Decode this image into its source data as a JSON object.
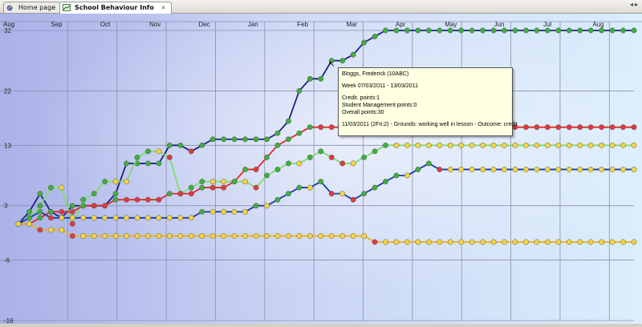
{
  "tabs": [
    {
      "label": "Home page",
      "icon": "home-icon",
      "active": false
    },
    {
      "label": "School Behaviour Info",
      "icon": "chart-icon",
      "active": true
    }
  ],
  "colors": {
    "navy": "#1a237e",
    "green": "#7fdc6e",
    "red": "#dd2a2a",
    "yellow": "#f2b01e",
    "blue": "#1a3aa8",
    "marker_green": "#3fae3f",
    "marker_yellow": "#f4d440",
    "marker_red": "#dd3b3b",
    "tooltip_bg": "#ffffe1"
  },
  "tooltip": {
    "name": "Bloggs, Frederick (10ABC)",
    "week": "Week 07/03/2011 - 13/03/2011",
    "credit": "Credit. points:1",
    "student_mgmt": "Student Management points:0",
    "overall": "Overall points:30",
    "detail": "11/03/2011 (2Fri:2) - Grounds: working well in lesson - Outcome: credit"
  },
  "chart_data": {
    "type": "line",
    "x_tick_labels": [
      "Aug",
      "Sep",
      "Oct",
      "Nov",
      "Dec",
      "Jan",
      "Feb",
      "Mar",
      "Apr",
      "May",
      "Jun",
      "Jul",
      "Aug"
    ],
    "y_tick_labels": [
      "32",
      "22",
      "13",
      "3",
      "-6",
      "-16"
    ],
    "ylim": [
      -16,
      32
    ],
    "grid": true,
    "series": [
      {
        "color_key": "navy",
        "marker_key": "marker_green",
        "values": [
          0,
          2,
          5,
          2,
          1,
          3,
          3,
          3,
          3,
          5,
          10,
          10,
          10,
          10,
          13,
          13,
          12,
          13,
          14,
          14,
          14,
          14,
          14,
          14,
          15,
          17,
          22,
          24,
          24,
          27,
          27,
          28,
          30,
          31,
          32,
          32,
          32,
          32,
          32,
          32,
          32,
          32,
          32,
          32,
          32,
          32,
          32,
          32,
          32,
          32,
          32,
          32,
          32,
          32,
          32,
          32,
          32,
          32
        ]
      },
      {
        "color_key": "green",
        "marker_key": "marker_yellow",
        "values": [
          0,
          1,
          3,
          6,
          6,
          0,
          4,
          5,
          7,
          7,
          7,
          11,
          12,
          12,
          11,
          5,
          6,
          7,
          7,
          7,
          7,
          7,
          6,
          8,
          9,
          10,
          10,
          11,
          12,
          11,
          10,
          10,
          11,
          12,
          13,
          13,
          13,
          13,
          13,
          13,
          13,
          13,
          13,
          13,
          13,
          13,
          13,
          13,
          13,
          13,
          13,
          13,
          13,
          13,
          13,
          13,
          13,
          13
        ]
      },
      {
        "color_key": "red",
        "marker_key": "marker_red",
        "values": [
          0,
          0,
          1,
          2,
          2,
          2,
          3,
          3,
          3,
          4,
          4,
          4,
          4,
          4,
          5,
          5,
          5,
          6,
          6,
          6,
          7,
          9,
          9,
          11,
          13,
          14,
          15,
          16,
          16,
          16,
          16,
          16,
          16,
          16,
          16,
          16,
          16,
          16,
          16,
          16,
          16,
          16,
          16,
          16,
          16,
          16,
          16,
          16,
          16,
          16,
          16,
          16,
          16,
          16,
          16,
          16,
          16,
          16
        ]
      },
      {
        "color_key": "yellow",
        "marker_key": "marker_yellow",
        "values": [
          0,
          0,
          -1,
          -1,
          -1,
          -2,
          -2,
          -2,
          -2,
          -2,
          -2,
          -2,
          -2,
          -2,
          -2,
          -2,
          -2,
          -2,
          -2,
          -2,
          -2,
          -2,
          -2,
          -2,
          -2,
          -2,
          -2,
          -2,
          -2,
          -2,
          -2,
          -2,
          -2,
          -3,
          -3,
          -3,
          -3,
          -3,
          -3,
          -3,
          -3,
          -3,
          -3,
          -3,
          -3,
          -3,
          -3,
          -3,
          -3,
          -3,
          -3,
          -3,
          -3,
          -3,
          -3,
          -3,
          -3,
          -3
        ]
      },
      {
        "color_key": "blue",
        "marker_key": "marker_yellow",
        "values": [
          0,
          1,
          2,
          1,
          1,
          1,
          1,
          1,
          1,
          1,
          1,
          1,
          1,
          1,
          1,
          1,
          1,
          2,
          2,
          2,
          2,
          2,
          3,
          3,
          4,
          5,
          6,
          6,
          7,
          5,
          5,
          4,
          5,
          6,
          7,
          8,
          8,
          9,
          10,
          9,
          9,
          9,
          9,
          9,
          9,
          9,
          9,
          9,
          9,
          9,
          9,
          9,
          9,
          9,
          9,
          9,
          9,
          9
        ]
      }
    ]
  }
}
